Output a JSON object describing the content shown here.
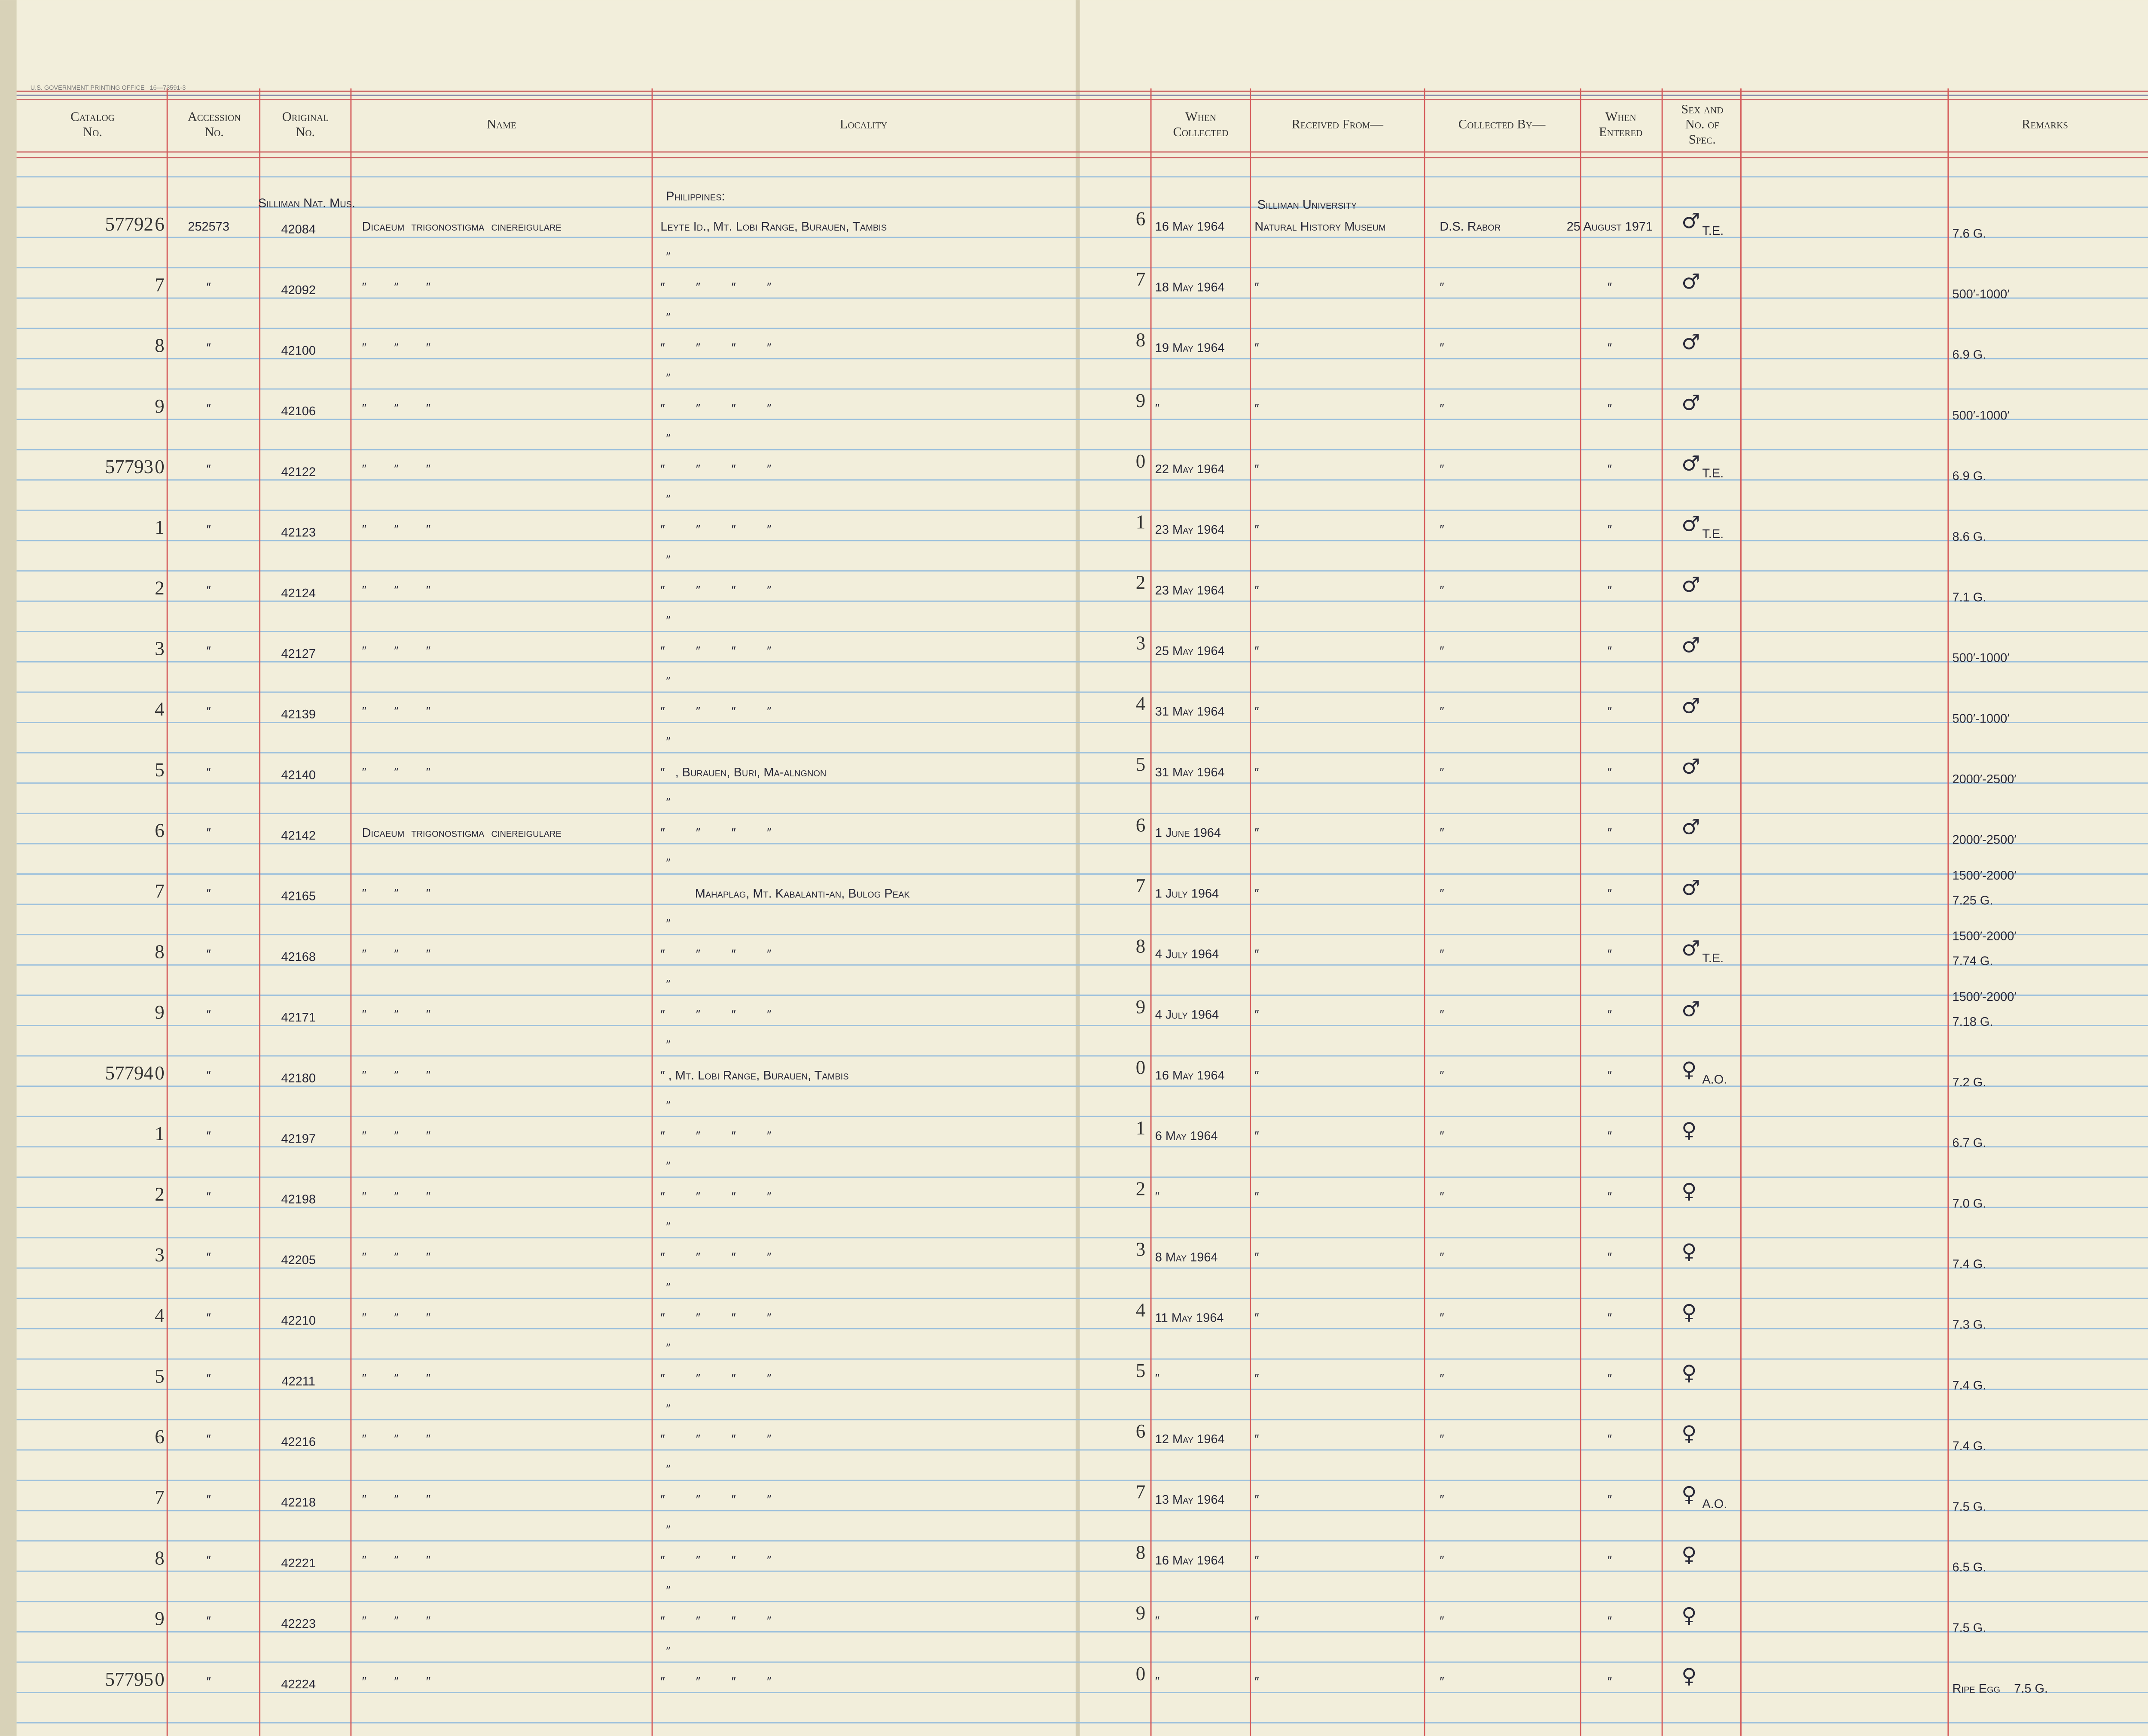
{
  "printer_line": "U.S. GOVERNMENT PRINTING OFFICE   16—73591-3",
  "headers": [
    [
      "Catalog",
      "No."
    ],
    [
      "Accession",
      "No."
    ],
    [
      "Original",
      "No."
    ],
    [
      "Name"
    ],
    [
      "Locality"
    ],
    [
      "When",
      "Collected"
    ],
    [
      "Received From—"
    ],
    [
      "Collected By—"
    ],
    [
      "When",
      "Entered"
    ],
    [
      "Sex and",
      "No. of",
      "Spec."
    ],
    [
      "Remarks"
    ]
  ],
  "rows": [
    {
      "prefix": "57792",
      "cat": "6",
      "acc": "252573",
      "orig_top": "Silliman Nat. Mus.",
      "orig": "42084",
      "name": "Dicaeum  trigonostigma  cinereigulare",
      "loc_top": "Philippines:",
      "loc": "Leyte Id., Mt. Lobi Range, Burauen, Tambis",
      "no": "6",
      "collected": "16 May 1964",
      "received_top": "Silliman University",
      "received": "Natural History Museum",
      "by": "D.S. Rabor",
      "entered": "25 August 1971",
      "sex": "♂",
      "sex_note": "T.E.",
      "remarks": [
        "7.6 G."
      ]
    },
    {
      "cat": "7",
      "acc": "″",
      "orig": "42092",
      "name": "″        ″        ″",
      "loc_top": "″",
      "loc": "″         ″         ″         ″",
      "no": "7",
      "collected": "18 May 1964",
      "received": "″",
      "by": "″",
      "entered": "″",
      "sex": "♂",
      "remarks": [
        "500′-1000′"
      ]
    },
    {
      "cat": "8",
      "acc": "″",
      "orig": "42100",
      "name": "″        ″        ″",
      "loc_top": "″",
      "loc": "″         ″         ″         ″",
      "no": "8",
      "collected": "19 May 1964",
      "received": "″",
      "by": "″",
      "entered": "″",
      "sex": "♂",
      "remarks": [
        "6.9 G."
      ]
    },
    {
      "cat": "9",
      "acc": "″",
      "orig": "42106",
      "name": "″        ″        ″",
      "loc_top": "″",
      "loc": "″         ″         ″         ″",
      "no": "9",
      "collected": "″",
      "received": "″",
      "by": "″",
      "entered": "″",
      "sex": "♂",
      "remarks": [
        "500′-1000′"
      ]
    },
    {
      "prefix": "57793",
      "cat": "0",
      "acc": "″",
      "orig": "42122",
      "name": "″        ″        ″",
      "loc_top": "″",
      "loc": "″         ″         ″         ″",
      "no": "0",
      "collected": "22 May 1964",
      "received": "″",
      "by": "″",
      "entered": "″",
      "sex": "♂",
      "sex_note": "T.E.",
      "remarks": [
        "6.9 G."
      ]
    },
    {
      "cat": "1",
      "acc": "″",
      "orig": "42123",
      "name": "″        ″        ″",
      "loc_top": "″",
      "loc": "″         ″         ″         ″",
      "no": "1",
      "collected": "23 May 1964",
      "received": "″",
      "by": "″",
      "entered": "″",
      "sex": "♂",
      "sex_note": "T.E.",
      "remarks": [
        "8.6 G."
      ]
    },
    {
      "cat": "2",
      "acc": "″",
      "orig": "42124",
      "name": "″        ″        ″",
      "loc_top": "″",
      "loc": "″         ″         ″         ″",
      "no": "2",
      "collected": "23 May 1964",
      "received": "″",
      "by": "″",
      "entered": "″",
      "sex": "♂",
      "remarks": [
        "7.1 G."
      ]
    },
    {
      "cat": "3",
      "acc": "″",
      "orig": "42127",
      "name": "″        ″        ″",
      "loc_top": "″",
      "loc": "″         ″         ″         ″",
      "no": "3",
      "collected": "25 May 1964",
      "received": "″",
      "by": "″",
      "entered": "″",
      "sex": "♂",
      "remarks": [
        "500′-1000′"
      ]
    },
    {
      "cat": "4",
      "acc": "″",
      "orig": "42139",
      "name": "″        ″        ″",
      "loc_top": "″",
      "loc": "″         ″         ″         ″",
      "no": "4",
      "collected": "31 May 1964",
      "received": "″",
      "by": "″",
      "entered": "″",
      "sex": "♂",
      "remarks": [
        "500′-1000′"
      ]
    },
    {
      "cat": "5",
      "acc": "″",
      "orig": "42140",
      "name": "″        ″        ″",
      "loc_top": "″",
      "loc": "″   , Burauen, Buri, Ma-alngnon",
      "no": "5",
      "collected": "31 May 1964",
      "received": "″",
      "by": "″",
      "entered": "″",
      "sex": "♂",
      "remarks": [
        "2000′-2500′"
      ]
    },
    {
      "cat": "6",
      "acc": "″",
      "orig": "42142",
      "name": "Dicaeum  trigonostigma  cinereigulare",
      "loc_top": "″",
      "loc": "″         ″         ″         ″",
      "no": "6",
      "collected": "1 June 1964",
      "received": "″",
      "by": "″",
      "entered": "″",
      "sex": "♂",
      "remarks": [
        "2000′-2500′"
      ]
    },
    {
      "cat": "7",
      "acc": "″",
      "orig": "42165",
      "name": "″        ″        ″",
      "loc_top": "″",
      "loc": "          Mahaplag, Mt. Kabalanti-an, Bulog Peak",
      "no": "7",
      "collected": "1 July 1964",
      "received": "″",
      "by": "″",
      "entered": "″",
      "sex": "♂",
      "remarks": [
        "1500′-2000′",
        "7.25 G."
      ]
    },
    {
      "cat": "8",
      "acc": "″",
      "orig": "42168",
      "name": "″        ″        ″",
      "loc_top": "″",
      "loc": "″         ″         ″         ″",
      "no": "8",
      "collected": "4 July 1964",
      "received": "″",
      "by": "″",
      "entered": "″",
      "sex": "♂",
      "sex_note": "T.E.",
      "remarks": [
        "1500′-2000′",
        "7.74 G."
      ]
    },
    {
      "cat": "9",
      "acc": "″",
      "orig": "42171",
      "name": "″        ″        ″",
      "loc_top": "″",
      "loc": "″         ″         ″         ″",
      "no": "9",
      "collected": "4 July 1964",
      "received": "″",
      "by": "″",
      "entered": "″",
      "sex": "♂",
      "remarks": [
        "1500′-2000′",
        "7.18 G."
      ]
    },
    {
      "prefix": "57794",
      "cat": "0",
      "acc": "″",
      "orig": "42180",
      "name": "″        ″        ″",
      "loc_top": "″",
      "loc": "″ , Mt. Lobi Range, Burauen, Tambis",
      "no": "0",
      "collected": "16 May 1964",
      "received": "″",
      "by": "″",
      "entered": "″",
      "sex": "♀",
      "sex_note": "A.O.",
      "remarks": [
        "7.2 G."
      ]
    },
    {
      "cat": "1",
      "acc": "″",
      "orig": "42197",
      "name": "″        ″        ″",
      "loc_top": "″",
      "loc": "″         ″         ″         ″",
      "no": "1",
      "collected": "6 May 1964",
      "received": "″",
      "by": "″",
      "entered": "″",
      "sex": "♀",
      "remarks": [
        "6.7 G."
      ]
    },
    {
      "cat": "2",
      "acc": "″",
      "orig": "42198",
      "name": "″        ″        ″",
      "loc_top": "″",
      "loc": "″         ″         ″         ″",
      "no": "2",
      "collected": "″",
      "received": "″",
      "by": "″",
      "entered": "″",
      "sex": "♀",
      "remarks": [
        "7.0 G."
      ]
    },
    {
      "cat": "3",
      "acc": "″",
      "orig": "42205",
      "name": "″        ″        ″",
      "loc_top": "″",
      "loc": "″         ″         ″         ″",
      "no": "3",
      "collected": "8 May 1964",
      "received": "″",
      "by": "″",
      "entered": "″",
      "sex": "♀",
      "remarks": [
        "7.4 G."
      ]
    },
    {
      "cat": "4",
      "acc": "″",
      "orig": "42210",
      "name": "″        ″        ″",
      "loc_top": "″",
      "loc": "″         ″         ″         ″",
      "no": "4",
      "collected": "11 May 1964",
      "received": "″",
      "by": "″",
      "entered": "″",
      "sex": "♀",
      "remarks": [
        "7.3 G."
      ]
    },
    {
      "cat": "5",
      "acc": "″",
      "orig": "42211",
      "name": "″        ″        ″",
      "loc_top": "″",
      "loc": "″         ″         ″         ″",
      "no": "5",
      "collected": "″",
      "received": "″",
      "by": "″",
      "entered": "″",
      "sex": "♀",
      "remarks": [
        "7.4 G."
      ]
    },
    {
      "cat": "6",
      "acc": "″",
      "orig": "42216",
      "name": "″        ″        ″",
      "loc_top": "″",
      "loc": "″         ″         ″         ″",
      "no": "6",
      "collected": "12 May 1964",
      "received": "″",
      "by": "″",
      "entered": "″",
      "sex": "♀",
      "remarks": [
        "7.4 G."
      ]
    },
    {
      "cat": "7",
      "acc": "″",
      "orig": "42218",
      "name": "″        ″        ″",
      "loc_top": "″",
      "loc": "″         ″         ″         ″",
      "no": "7",
      "collected": "13 May 1964",
      "received": "″",
      "by": "″",
      "entered": "″",
      "sex": "♀",
      "sex_note": "A.O.",
      "remarks": [
        "7.5 G."
      ]
    },
    {
      "cat": "8",
      "acc": "″",
      "orig": "42221",
      "name": "″        ″        ″",
      "loc_top": "″",
      "loc": "″         ″         ″         ″",
      "no": "8",
      "collected": "16 May 1964",
      "received": "″",
      "by": "″",
      "entered": "″",
      "sex": "♀",
      "remarks": [
        "6.5 G."
      ]
    },
    {
      "cat": "9",
      "acc": "″",
      "orig": "42223",
      "name": "″        ″        ″",
      "loc_top": "″",
      "loc": "″         ″         ″         ″",
      "no": "9",
      "collected": "″",
      "received": "″",
      "by": "″",
      "entered": "″",
      "sex": "♀",
      "remarks": [
        "7.5 G."
      ]
    },
    {
      "prefix": "57795",
      "cat": "0",
      "acc": "″",
      "orig": "42224",
      "name": "″        ″        ″",
      "loc_top": "″",
      "loc": "″         ″         ″         ″",
      "no": "0",
      "collected": "″",
      "received": "″",
      "by": "″",
      "entered": "″",
      "sex": "♀",
      "remarks": [
        "Ripe Egg    7.5 G."
      ]
    }
  ]
}
